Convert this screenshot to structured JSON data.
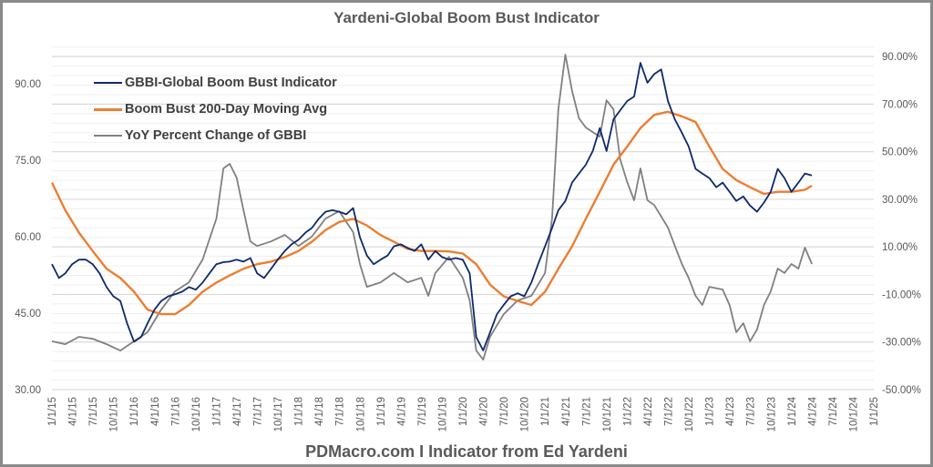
{
  "chart_data": {
    "type": "line",
    "title": "Yardeni-Global Boom Bust Indicator",
    "footer": "PDMacro.com I Indicator from Ed Yardeni",
    "y_left": {
      "range": [
        30,
        100
      ],
      "ticks": [
        30,
        45,
        60,
        75,
        90
      ],
      "tick_labels": [
        "30.00",
        "45.00",
        "60.00",
        "75.00",
        "90.00"
      ]
    },
    "y_right": {
      "range": [
        -50,
        100
      ],
      "ticks": [
        -50,
        -30,
        -10,
        10,
        30,
        50,
        70,
        90
      ],
      "tick_labels": [
        "-50.00%",
        "-30.00%",
        "-10.00%",
        "10.00%",
        "30.00%",
        "50.00%",
        "70.00%",
        "90.00%"
      ]
    },
    "x_range": [
      "2015-01-01",
      "2025-01-01"
    ],
    "x_tick_labels": [
      "1/1/15",
      "4/1/15",
      "7/1/15",
      "10/1/15",
      "1/1/16",
      "4/1/16",
      "7/1/16",
      "10/1/16",
      "1/1/17",
      "4/1/17",
      "7/1/17",
      "10/1/17",
      "1/1/18",
      "4/1/18",
      "7/1/18",
      "10/1/18",
      "1/1/19",
      "4/1/19",
      "7/1/19",
      "10/1/19",
      "1/1/20",
      "4/1/20",
      "7/1/20",
      "10/1/20",
      "1/1/21",
      "4/1/21",
      "7/1/21",
      "10/1/21",
      "1/1/22",
      "4/1/22",
      "7/1/22",
      "10/1/22",
      "1/1/23",
      "4/1/23",
      "7/1/23",
      "10/1/23",
      "1/1/24",
      "4/1/24",
      "7/1/24",
      "10/1/24",
      "1/1/25"
    ],
    "grid": true,
    "legend_position": "top-left",
    "series": [
      {
        "name": "GBBI-Global Boom Bust Indicator",
        "axis": "left",
        "color": "#0d2a6b",
        "points": [
          [
            "2015-01",
            54.6
          ],
          [
            "2015-02",
            51.9
          ],
          [
            "2015-03",
            52.8
          ],
          [
            "2015-04",
            54.6
          ],
          [
            "2015-05",
            55.5
          ],
          [
            "2015-06",
            55.5
          ],
          [
            "2015-07",
            54.6
          ],
          [
            "2015-08",
            52.8
          ],
          [
            "2015-09",
            50.1
          ],
          [
            "2015-10",
            48.3
          ],
          [
            "2015-11",
            47.4
          ],
          [
            "2015-12",
            43.0
          ],
          [
            "2016-01",
            39.4
          ],
          [
            "2016-02",
            40.3
          ],
          [
            "2016-03",
            43.0
          ],
          [
            "2016-04",
            45.7
          ],
          [
            "2016-05",
            47.4
          ],
          [
            "2016-06",
            48.3
          ],
          [
            "2016-07",
            48.7
          ],
          [
            "2016-08",
            49.2
          ],
          [
            "2016-09",
            50.1
          ],
          [
            "2016-10",
            49.6
          ],
          [
            "2016-11",
            51.0
          ],
          [
            "2016-12",
            52.8
          ],
          [
            "2017-01",
            54.6
          ],
          [
            "2017-02",
            55.0
          ],
          [
            "2017-03",
            55.1
          ],
          [
            "2017-04",
            55.5
          ],
          [
            "2017-05",
            55.1
          ],
          [
            "2017-06",
            55.8
          ],
          [
            "2017-07",
            52.8
          ],
          [
            "2017-08",
            51.9
          ],
          [
            "2017-09",
            53.7
          ],
          [
            "2017-10",
            55.5
          ],
          [
            "2017-11",
            57.2
          ],
          [
            "2017-12",
            58.5
          ],
          [
            "2018-01",
            59.4
          ],
          [
            "2018-02",
            60.8
          ],
          [
            "2018-03",
            61.7
          ],
          [
            "2018-04",
            63.5
          ],
          [
            "2018-05",
            64.9
          ],
          [
            "2018-06",
            65.2
          ],
          [
            "2018-07",
            64.9
          ],
          [
            "2018-08",
            64.4
          ],
          [
            "2018-09",
            65.6
          ],
          [
            "2018-10",
            59.9
          ],
          [
            "2018-11",
            56.3
          ],
          [
            "2018-12",
            54.6
          ],
          [
            "2019-01",
            55.5
          ],
          [
            "2019-02",
            56.3
          ],
          [
            "2019-03",
            58.1
          ],
          [
            "2019-04",
            58.5
          ],
          [
            "2019-05",
            57.8
          ],
          [
            "2019-06",
            57.2
          ],
          [
            "2019-07",
            58.5
          ],
          [
            "2019-08",
            55.5
          ],
          [
            "2019-09",
            57.2
          ],
          [
            "2019-10",
            56.0
          ],
          [
            "2019-11",
            55.5
          ],
          [
            "2019-12",
            55.8
          ],
          [
            "2020-01",
            55.5
          ],
          [
            "2020-02",
            52.8
          ],
          [
            "2020-03",
            40.3
          ],
          [
            "2020-04",
            37.7
          ],
          [
            "2020-05",
            41.2
          ],
          [
            "2020-06",
            44.8
          ],
          [
            "2020-07",
            46.6
          ],
          [
            "2020-08",
            48.3
          ],
          [
            "2020-09",
            48.9
          ],
          [
            "2020-10",
            48.3
          ],
          [
            "2020-11",
            51.0
          ],
          [
            "2020-12",
            54.6
          ],
          [
            "2021-01",
            58.1
          ],
          [
            "2021-02",
            61.7
          ],
          [
            "2021-03",
            65.2
          ],
          [
            "2021-04",
            67.0
          ],
          [
            "2021-05",
            70.6
          ],
          [
            "2021-06",
            72.4
          ],
          [
            "2021-07",
            74.1
          ],
          [
            "2021-08",
            76.8
          ],
          [
            "2021-09",
            81.3
          ],
          [
            "2021-10",
            76.8
          ],
          [
            "2021-11",
            83.0
          ],
          [
            "2021-12",
            84.8
          ],
          [
            "2022-01",
            86.6
          ],
          [
            "2022-02",
            87.5
          ],
          [
            "2022-03",
            94.1
          ],
          [
            "2022-04",
            90.2
          ],
          [
            "2022-05",
            91.9
          ],
          [
            "2022-06",
            92.8
          ],
          [
            "2022-07",
            86.6
          ],
          [
            "2022-08",
            83.0
          ],
          [
            "2022-09",
            80.4
          ],
          [
            "2022-10",
            77.7
          ],
          [
            "2022-11",
            73.3
          ],
          [
            "2022-12",
            72.4
          ],
          [
            "2023-01",
            71.5
          ],
          [
            "2023-02",
            69.7
          ],
          [
            "2023-03",
            70.6
          ],
          [
            "2023-04",
            68.8
          ],
          [
            "2023-05",
            67.0
          ],
          [
            "2023-06",
            67.9
          ],
          [
            "2023-07",
            66.1
          ],
          [
            "2023-08",
            64.9
          ],
          [
            "2023-09",
            66.7
          ],
          [
            "2023-10",
            68.8
          ],
          [
            "2023-11",
            73.3
          ],
          [
            "2023-12",
            71.5
          ],
          [
            "2024-01",
            68.8
          ],
          [
            "2024-02",
            70.6
          ],
          [
            "2024-03",
            72.4
          ],
          [
            "2024-04",
            72.0
          ]
        ]
      },
      {
        "name": "Boom Bust 200-Day Moving Avg",
        "axis": "left",
        "color": "#ed7d31",
        "points": [
          [
            "2015-01",
            70.6
          ],
          [
            "2015-03",
            65.2
          ],
          [
            "2015-05",
            60.8
          ],
          [
            "2015-07",
            57.2
          ],
          [
            "2015-09",
            53.7
          ],
          [
            "2015-11",
            51.9
          ],
          [
            "2016-01",
            49.2
          ],
          [
            "2016-03",
            45.7
          ],
          [
            "2016-05",
            44.8
          ],
          [
            "2016-07",
            44.8
          ],
          [
            "2016-09",
            46.6
          ],
          [
            "2016-11",
            49.2
          ],
          [
            "2017-01",
            51.0
          ],
          [
            "2017-03",
            52.4
          ],
          [
            "2017-05",
            53.7
          ],
          [
            "2017-07",
            54.6
          ],
          [
            "2017-09",
            55.1
          ],
          [
            "2017-11",
            56.0
          ],
          [
            "2018-01",
            57.2
          ],
          [
            "2018-03",
            59.0
          ],
          [
            "2018-05",
            61.3
          ],
          [
            "2018-07",
            62.9
          ],
          [
            "2018-09",
            63.5
          ],
          [
            "2018-11",
            62.2
          ],
          [
            "2019-01",
            60.3
          ],
          [
            "2019-03",
            59.0
          ],
          [
            "2019-05",
            57.6
          ],
          [
            "2019-07",
            57.2
          ],
          [
            "2019-09",
            57.2
          ],
          [
            "2019-11",
            57.1
          ],
          [
            "2020-01",
            56.7
          ],
          [
            "2020-03",
            54.6
          ],
          [
            "2020-05",
            50.6
          ],
          [
            "2020-07",
            48.3
          ],
          [
            "2020-09",
            47.4
          ],
          [
            "2020-11",
            46.6
          ],
          [
            "2021-01",
            49.2
          ],
          [
            "2021-03",
            53.7
          ],
          [
            "2021-05",
            58.1
          ],
          [
            "2021-07",
            63.5
          ],
          [
            "2021-09",
            68.8
          ],
          [
            "2021-11",
            74.1
          ],
          [
            "2022-01",
            77.7
          ],
          [
            "2022-03",
            81.3
          ],
          [
            "2022-05",
            83.9
          ],
          [
            "2022-07",
            84.5
          ],
          [
            "2022-09",
            83.6
          ],
          [
            "2022-11",
            82.5
          ],
          [
            "2023-01",
            77.7
          ],
          [
            "2023-03",
            73.3
          ],
          [
            "2023-05",
            71.1
          ],
          [
            "2023-07",
            69.7
          ],
          [
            "2023-09",
            68.4
          ],
          [
            "2023-11",
            68.8
          ],
          [
            "2024-01",
            68.8
          ],
          [
            "2024-03",
            69.2
          ],
          [
            "2024-04",
            70.0
          ]
        ]
      },
      {
        "name": "YoY Percent Change of GBBI",
        "axis": "right",
        "color": "#808080",
        "points": [
          [
            "2015-01",
            -29.7
          ],
          [
            "2015-03",
            -30.9
          ],
          [
            "2015-05",
            -27.8
          ],
          [
            "2015-07",
            -28.6
          ],
          [
            "2015-09",
            -30.9
          ],
          [
            "2015-11",
            -33.6
          ],
          [
            "2016-01",
            -29.7
          ],
          [
            "2016-03",
            -25.9
          ],
          [
            "2016-05",
            -16.3
          ],
          [
            "2016-07",
            -8.7
          ],
          [
            "2016-09",
            -4.9
          ],
          [
            "2016-11",
            4.7
          ],
          [
            "2017-01",
            21.9
          ],
          [
            "2017-02",
            43.0
          ],
          [
            "2017-03",
            44.9
          ],
          [
            "2017-04",
            39.1
          ],
          [
            "2017-05",
            25.7
          ],
          [
            "2017-06",
            12.3
          ],
          [
            "2017-07",
            10.4
          ],
          [
            "2017-09",
            12.3
          ],
          [
            "2017-11",
            15.0
          ],
          [
            "2018-01",
            10.4
          ],
          [
            "2018-03",
            14.3
          ],
          [
            "2018-05",
            21.9
          ],
          [
            "2018-07",
            25.0
          ],
          [
            "2018-09",
            16.2
          ],
          [
            "2018-10",
            2.8
          ],
          [
            "2018-11",
            -6.8
          ],
          [
            "2019-01",
            -4.9
          ],
          [
            "2019-03",
            -1.0
          ],
          [
            "2019-05",
            -4.9
          ],
          [
            "2019-07",
            -3.0
          ],
          [
            "2019-08",
            -10.6
          ],
          [
            "2019-09",
            -1.0
          ],
          [
            "2019-11",
            5.8
          ],
          [
            "2020-01",
            -3.0
          ],
          [
            "2020-02",
            -12.5
          ],
          [
            "2020-03",
            -33.6
          ],
          [
            "2020-04",
            -37.4
          ],
          [
            "2020-05",
            -27.8
          ],
          [
            "2020-07",
            -18.3
          ],
          [
            "2020-09",
            -12.5
          ],
          [
            "2020-11",
            -10.6
          ],
          [
            "2021-01",
            -1.0
          ],
          [
            "2021-02",
            21.9
          ],
          [
            "2021-03",
            67.8
          ],
          [
            "2021-04",
            90.8
          ],
          [
            "2021-05",
            75.5
          ],
          [
            "2021-06",
            64.0
          ],
          [
            "2021-07",
            60.2
          ],
          [
            "2021-09",
            56.3
          ],
          [
            "2021-10",
            71.6
          ],
          [
            "2021-11",
            67.8
          ],
          [
            "2021-12",
            46.8
          ],
          [
            "2022-01",
            37.2
          ],
          [
            "2022-02",
            29.6
          ],
          [
            "2022-03",
            43.0
          ],
          [
            "2022-04",
            29.6
          ],
          [
            "2022-05",
            27.6
          ],
          [
            "2022-07",
            18.1
          ],
          [
            "2022-08",
            10.4
          ],
          [
            "2022-09",
            2.8
          ],
          [
            "2022-10",
            -3.0
          ],
          [
            "2022-11",
            -10.6
          ],
          [
            "2022-12",
            -14.4
          ],
          [
            "2023-01",
            -6.8
          ],
          [
            "2023-03",
            -7.9
          ],
          [
            "2023-04",
            -14.4
          ],
          [
            "2023-05",
            -25.9
          ],
          [
            "2023-06",
            -22.1
          ],
          [
            "2023-07",
            -29.7
          ],
          [
            "2023-08",
            -24.8
          ],
          [
            "2023-09",
            -14.4
          ],
          [
            "2023-10",
            -8.7
          ],
          [
            "2023-11",
            0.9
          ],
          [
            "2023-12",
            -1.0
          ],
          [
            "2024-01",
            2.8
          ],
          [
            "2024-02",
            0.9
          ],
          [
            "2024-03",
            9.7
          ],
          [
            "2024-04",
            2.8
          ]
        ]
      }
    ]
  }
}
